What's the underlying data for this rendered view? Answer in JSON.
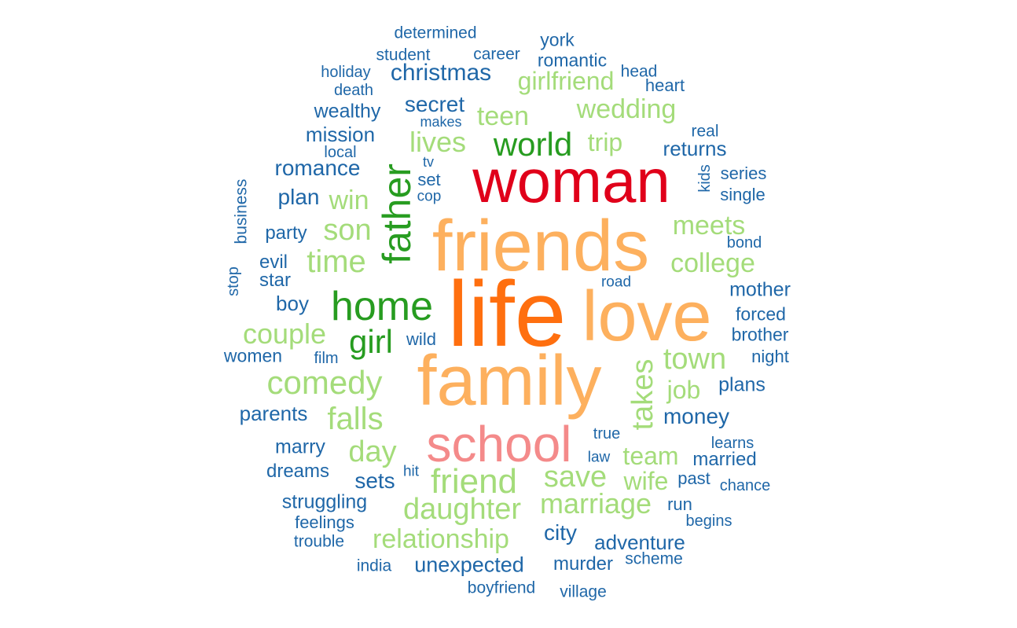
{
  "colors": {
    "tier1": "#e31a1c",
    "tier2": "#fb9a99",
    "tier3": "#ff7f00",
    "tier4": "#fdbf6f",
    "tier5": "#33a02c",
    "tier6": "#b2df8a",
    "tier7": "#1f78b4"
  },
  "words": [
    {
      "text": "life",
      "color": "#ff6f0f"
    },
    {
      "text": "family",
      "color": "#fdb05e"
    },
    {
      "text": "friends",
      "color": "#fdb05e"
    },
    {
      "text": "love",
      "color": "#fdb05e"
    },
    {
      "text": "woman",
      "color": "#e0001a"
    },
    {
      "text": "school",
      "color": "#f48a8a"
    },
    {
      "text": "home",
      "color": "#279c20"
    },
    {
      "text": "father",
      "color": "#279c20"
    },
    {
      "text": "world",
      "color": "#279c20"
    },
    {
      "text": "girl",
      "color": "#279c20"
    },
    {
      "text": "friend",
      "color": "#a4dc7a"
    },
    {
      "text": "daughter",
      "color": "#a4dc7a"
    },
    {
      "text": "comedy",
      "color": "#a4dc7a"
    },
    {
      "text": "falls",
      "color": "#a4dc7a"
    },
    {
      "text": "takes",
      "color": "#a4dc7a"
    },
    {
      "text": "town",
      "color": "#a4dc7a"
    },
    {
      "text": "save",
      "color": "#a4dc7a"
    },
    {
      "text": "marriage",
      "color": "#a4dc7a"
    },
    {
      "text": "relationship",
      "color": "#a4dc7a"
    },
    {
      "text": "day",
      "color": "#a4dc7a"
    },
    {
      "text": "time",
      "color": "#a4dc7a"
    },
    {
      "text": "son",
      "color": "#a4dc7a"
    },
    {
      "text": "college",
      "color": "#a4dc7a"
    },
    {
      "text": "meets",
      "color": "#a4dc7a"
    },
    {
      "text": "couple",
      "color": "#a4dc7a"
    },
    {
      "text": "lives",
      "color": "#a4dc7a"
    },
    {
      "text": "wedding",
      "color": "#a4dc7a"
    },
    {
      "text": "teen",
      "color": "#a4dc7a"
    },
    {
      "text": "girlfriend",
      "color": "#a4dc7a"
    },
    {
      "text": "win",
      "color": "#a4dc7a"
    },
    {
      "text": "job",
      "color": "#a4dc7a"
    },
    {
      "text": "team",
      "color": "#a4dc7a"
    },
    {
      "text": "wife",
      "color": "#a4dc7a"
    },
    {
      "text": "trip",
      "color": "#a4dc7a"
    },
    {
      "text": "determined",
      "color": "#1f67a8"
    },
    {
      "text": "york",
      "color": "#1f67a8"
    },
    {
      "text": "student",
      "color": "#1f67a8"
    },
    {
      "text": "career",
      "color": "#1f67a8"
    },
    {
      "text": "romantic",
      "color": "#1f67a8"
    },
    {
      "text": "holiday",
      "color": "#1f67a8"
    },
    {
      "text": "christmas",
      "color": "#1f67a8"
    },
    {
      "text": "head",
      "color": "#1f67a8"
    },
    {
      "text": "death",
      "color": "#1f67a8"
    },
    {
      "text": "heart",
      "color": "#1f67a8"
    },
    {
      "text": "wealthy",
      "color": "#1f67a8"
    },
    {
      "text": "secret",
      "color": "#1f67a8"
    },
    {
      "text": "makes",
      "color": "#1f67a8"
    },
    {
      "text": "mission",
      "color": "#1f67a8"
    },
    {
      "text": "real",
      "color": "#1f67a8"
    },
    {
      "text": "local",
      "color": "#1f67a8"
    },
    {
      "text": "returns",
      "color": "#1f67a8"
    },
    {
      "text": "romance",
      "color": "#1f67a8"
    },
    {
      "text": "tv",
      "color": "#1f67a8"
    },
    {
      "text": "kids",
      "color": "#1f67a8"
    },
    {
      "text": "series",
      "color": "#1f67a8"
    },
    {
      "text": "set",
      "color": "#1f67a8"
    },
    {
      "text": "plan",
      "color": "#1f67a8"
    },
    {
      "text": "cop",
      "color": "#1f67a8"
    },
    {
      "text": "single",
      "color": "#1f67a8"
    },
    {
      "text": "business",
      "color": "#1f67a8"
    },
    {
      "text": "party",
      "color": "#1f67a8"
    },
    {
      "text": "bond",
      "color": "#1f67a8"
    },
    {
      "text": "evil",
      "color": "#1f67a8"
    },
    {
      "text": "stop",
      "color": "#1f67a8"
    },
    {
      "text": "star",
      "color": "#1f67a8"
    },
    {
      "text": "road",
      "color": "#1f67a8"
    },
    {
      "text": "mother",
      "color": "#1f67a8"
    },
    {
      "text": "boy",
      "color": "#1f67a8"
    },
    {
      "text": "forced",
      "color": "#1f67a8"
    },
    {
      "text": "brother",
      "color": "#1f67a8"
    },
    {
      "text": "wild",
      "color": "#1f67a8"
    },
    {
      "text": "women",
      "color": "#1f67a8"
    },
    {
      "text": "film",
      "color": "#1f67a8"
    },
    {
      "text": "night",
      "color": "#1f67a8"
    },
    {
      "text": "plans",
      "color": "#1f67a8"
    },
    {
      "text": "parents",
      "color": "#1f67a8"
    },
    {
      "text": "money",
      "color": "#1f67a8"
    },
    {
      "text": "true",
      "color": "#1f67a8"
    },
    {
      "text": "learns",
      "color": "#1f67a8"
    },
    {
      "text": "marry",
      "color": "#1f67a8"
    },
    {
      "text": "law",
      "color": "#1f67a8"
    },
    {
      "text": "married",
      "color": "#1f67a8"
    },
    {
      "text": "dreams",
      "color": "#1f67a8"
    },
    {
      "text": "hit",
      "color": "#1f67a8"
    },
    {
      "text": "past",
      "color": "#1f67a8"
    },
    {
      "text": "sets",
      "color": "#1f67a8"
    },
    {
      "text": "chance",
      "color": "#1f67a8"
    },
    {
      "text": "struggling",
      "color": "#1f67a8"
    },
    {
      "text": "run",
      "color": "#1f67a8"
    },
    {
      "text": "feelings",
      "color": "#1f67a8"
    },
    {
      "text": "begins",
      "color": "#1f67a8"
    },
    {
      "text": "city",
      "color": "#1f67a8"
    },
    {
      "text": "trouble",
      "color": "#1f67a8"
    },
    {
      "text": "adventure",
      "color": "#1f67a8"
    },
    {
      "text": "scheme",
      "color": "#1f67a8"
    },
    {
      "text": "india",
      "color": "#1f67a8"
    },
    {
      "text": "unexpected",
      "color": "#1f67a8"
    },
    {
      "text": "murder",
      "color": "#1f67a8"
    },
    {
      "text": "boyfriend",
      "color": "#1f67a8"
    },
    {
      "text": "village",
      "color": "#1f67a8"
    }
  ]
}
